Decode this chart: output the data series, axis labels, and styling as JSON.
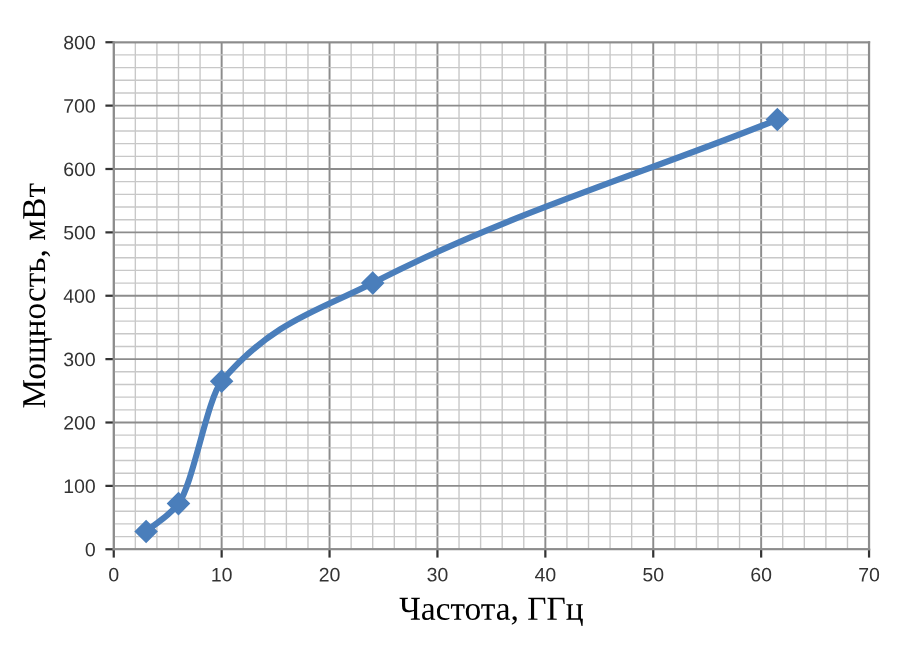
{
  "chart_data": {
    "type": "line",
    "xlabel": "Частота, ГГц",
    "ylabel": "Мощность, мВт",
    "x": [
      3,
      6,
      10,
      24,
      61.5
    ],
    "series": [
      {
        "color": "#4a7ebb",
        "values": [
          28,
          72,
          265,
          420,
          678
        ]
      }
    ],
    "xlim": [
      0,
      70
    ],
    "xticks": [
      0,
      10,
      20,
      30,
      40,
      50,
      60,
      70
    ],
    "ylim": [
      0,
      800
    ],
    "yticks": [
      0,
      100,
      200,
      300,
      400,
      500,
      600,
      700,
      800
    ],
    "grid": true,
    "marker": "diamond",
    "line_style": "solid"
  }
}
